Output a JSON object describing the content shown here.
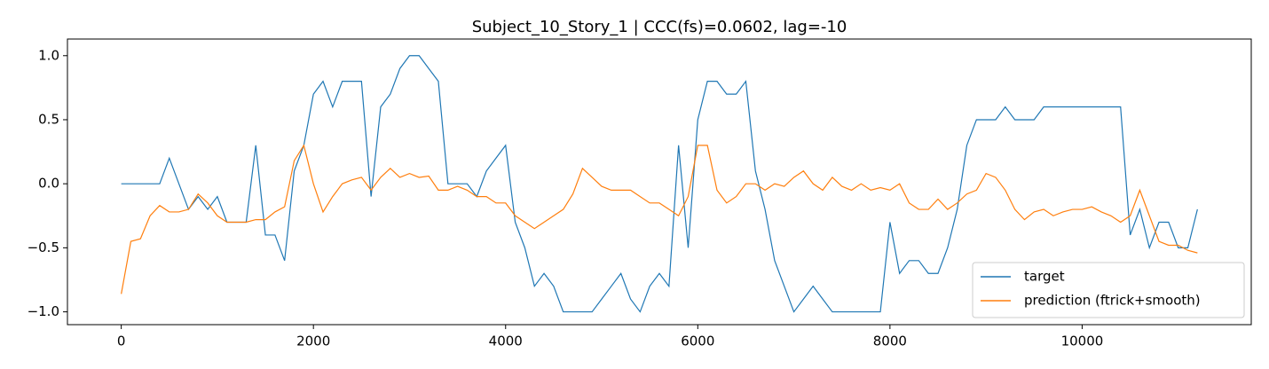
{
  "chart_data": {
    "type": "line",
    "title": "Subject_10_Story_1 | CCC(fs)=0.0602, lag=-10",
    "x": [
      0,
      100,
      200,
      300,
      400,
      500,
      600,
      700,
      800,
      900,
      1000,
      1100,
      1200,
      1300,
      1400,
      1500,
      1600,
      1700,
      1800,
      1900,
      2000,
      2100,
      2200,
      2300,
      2400,
      2500,
      2600,
      2700,
      2800,
      2900,
      3000,
      3100,
      3200,
      3300,
      3400,
      3500,
      3600,
      3700,
      3800,
      3900,
      4000,
      4100,
      4200,
      4300,
      4400,
      4500,
      4600,
      4700,
      4800,
      4900,
      5000,
      5100,
      5200,
      5300,
      5400,
      5500,
      5600,
      5700,
      5800,
      5900,
      6000,
      6100,
      6200,
      6300,
      6400,
      6500,
      6600,
      6700,
      6800,
      6900,
      7000,
      7100,
      7200,
      7300,
      7400,
      7500,
      7600,
      7700,
      7800,
      7900,
      8000,
      8100,
      8200,
      8300,
      8400,
      8500,
      8600,
      8700,
      8800,
      8900,
      9000,
      9100,
      9200,
      9300,
      9400,
      9500,
      9600,
      9700,
      9800,
      9900,
      10000,
      10100,
      10200,
      10300,
      10400,
      10500,
      10600,
      10700,
      10800,
      10900,
      11000,
      11100,
      11200
    ],
    "series": [
      {
        "name": "target",
        "color": "#1f77b4",
        "values": [
          0,
          0,
          0,
          0,
          0,
          0.2,
          0,
          -0.2,
          -0.1,
          -0.2,
          -0.1,
          -0.3,
          -0.3,
          -0.3,
          0.3,
          -0.4,
          -0.4,
          -0.6,
          0.1,
          0.3,
          0.7,
          0.8,
          0.6,
          0.8,
          0.8,
          0.8,
          -0.1,
          0.6,
          0.7,
          0.9,
          1.0,
          1.0,
          0.9,
          0.8,
          0,
          0,
          0,
          -0.1,
          0.1,
          0.2,
          0.3,
          -0.3,
          -0.5,
          -0.8,
          -0.7,
          -0.8,
          -1.0,
          -1.0,
          -1.0,
          -1.0,
          -0.9,
          -0.8,
          -0.7,
          -0.9,
          -1.0,
          -0.8,
          -0.7,
          -0.8,
          0.3,
          -0.5,
          0.5,
          0.8,
          0.8,
          0.7,
          0.7,
          0.8,
          0.1,
          -0.2,
          -0.6,
          -0.8,
          -1.0,
          -0.9,
          -0.8,
          -0.9,
          -1.0,
          -1.0,
          -1.0,
          -1.0,
          -1.0,
          -1.0,
          -0.3,
          -0.7,
          -0.6,
          -0.6,
          -0.7,
          -0.7,
          -0.5,
          -0.2,
          0.3,
          0.5,
          0.5,
          0.5,
          0.6,
          0.5,
          0.5,
          0.5,
          0.6,
          0.6,
          0.6,
          0.6,
          0.6,
          0.6,
          0.6,
          0.6,
          0.6,
          -0.4,
          -0.2,
          -0.5,
          -0.3,
          -0.3,
          -0.5,
          -0.5,
          -0.2
        ]
      },
      {
        "name": "prediction (ftrick+smooth)",
        "color": "#ff7f0e",
        "values": [
          -0.86,
          -0.45,
          -0.43,
          -0.25,
          -0.17,
          -0.22,
          -0.22,
          -0.2,
          -0.08,
          -0.15,
          -0.25,
          -0.3,
          -0.3,
          -0.3,
          -0.28,
          -0.28,
          -0.22,
          -0.18,
          0.18,
          0.3,
          0.0,
          -0.22,
          -0.1,
          0.0,
          0.03,
          0.05,
          -0.05,
          0.05,
          0.12,
          0.05,
          0.08,
          0.05,
          0.06,
          -0.05,
          -0.05,
          -0.02,
          -0.05,
          -0.1,
          -0.1,
          -0.15,
          -0.15,
          -0.25,
          -0.3,
          -0.35,
          -0.3,
          -0.25,
          -0.2,
          -0.08,
          0.12,
          0.05,
          -0.02,
          -0.05,
          -0.05,
          -0.05,
          -0.1,
          -0.15,
          -0.15,
          -0.2,
          -0.25,
          -0.1,
          0.3,
          0.3,
          -0.05,
          -0.15,
          -0.1,
          0.0,
          0.0,
          -0.05,
          0.0,
          -0.02,
          0.05,
          0.1,
          0.0,
          -0.05,
          0.05,
          -0.02,
          -0.05,
          0.0,
          -0.05,
          -0.03,
          -0.05,
          0.0,
          -0.15,
          -0.2,
          -0.2,
          -0.12,
          -0.2,
          -0.15,
          -0.08,
          -0.05,
          0.08,
          0.05,
          -0.05,
          -0.2,
          -0.28,
          -0.22,
          -0.2,
          -0.25,
          -0.22,
          -0.2,
          -0.2,
          -0.18,
          -0.22,
          -0.25,
          -0.3,
          -0.25,
          -0.05,
          -0.25,
          -0.45,
          -0.48,
          -0.48,
          -0.52,
          -0.54
        ]
      }
    ],
    "xlim": [
      -560,
      11760
    ],
    "ylim": [
      -1.1,
      1.13
    ],
    "xticks": [
      0,
      2000,
      4000,
      6000,
      8000,
      10000
    ],
    "yticks": [
      {
        "value": -1.0,
        "label": "−1.0"
      },
      {
        "value": -0.5,
        "label": "−0.5"
      },
      {
        "value": 0,
        "label": "0.0"
      },
      {
        "value": 0.5,
        "label": "0.5"
      },
      {
        "value": 1.0,
        "label": "1.0"
      }
    ],
    "grid": false,
    "legend": "lower right"
  }
}
